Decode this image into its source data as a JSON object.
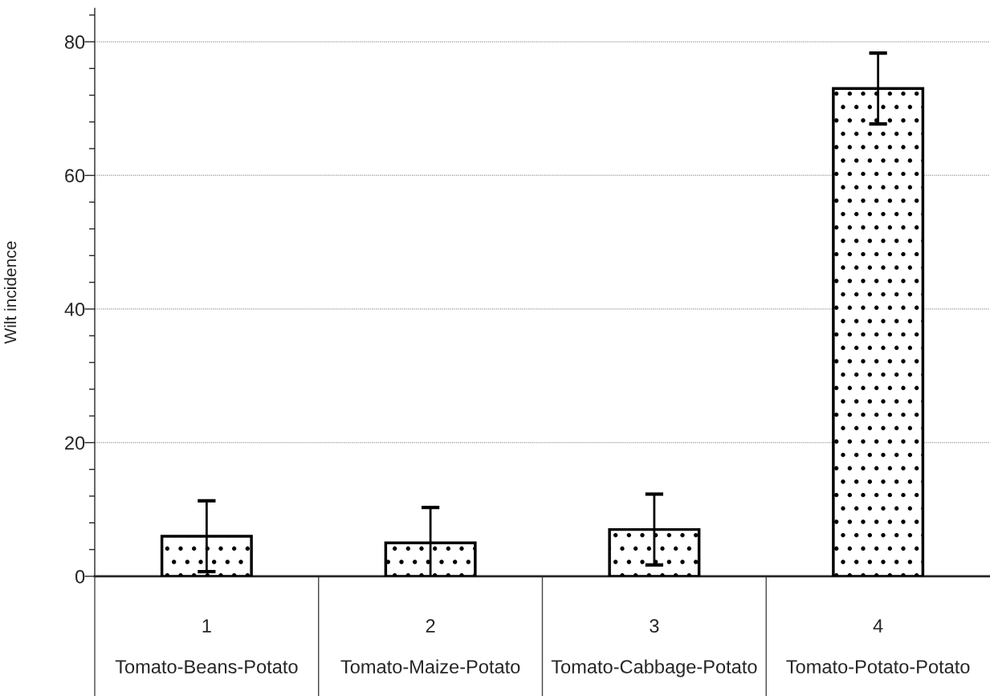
{
  "chart_data": {
    "type": "bar",
    "ylabel": "Wilt incidence",
    "categories": [
      "1\n\nTomato-Beans-Potato",
      "2\n\nTomato-Maize-Potato",
      "3\n\nTomato-Cabbage-Potato",
      "4\n\nTomato-Potato-Potato"
    ],
    "values": [
      6,
      5,
      7,
      73
    ],
    "errors": [
      5.3,
      5.3,
      5.3,
      5.3
    ],
    "ylim": [
      0,
      85
    ],
    "yticks": [
      0,
      {
        "value": 4,
        "label": null
      },
      {
        "value": 8,
        "label": null
      },
      {
        "value": 12,
        "label": null
      },
      {
        "value": 16,
        "label": null
      },
      20,
      {
        "value": 24,
        "label": null
      },
      {
        "value": 28,
        "label": null
      },
      {
        "value": 32,
        "label": null
      },
      {
        "value": 36,
        "label": null
      },
      40,
      {
        "value": 44,
        "label": null
      },
      {
        "value": 48,
        "label": null
      },
      {
        "value": 52,
        "label": null
      },
      {
        "value": 56,
        "label": null
      },
      60,
      {
        "value": 64,
        "label": null
      },
      {
        "value": 68,
        "label": null
      },
      {
        "value": 72,
        "label": null
      },
      {
        "value": 76,
        "label": null
      },
      80,
      {
        "value": 84,
        "label": null
      }
    ],
    "grid": "y"
  }
}
